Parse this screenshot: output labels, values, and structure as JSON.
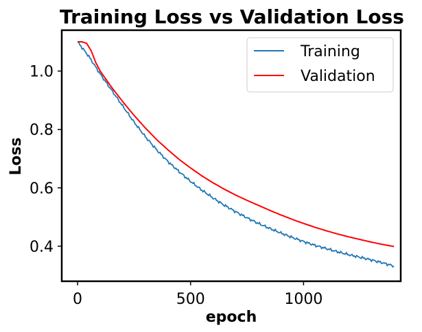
{
  "chart_data": {
    "type": "line",
    "title": "Training Loss vs Validation Loss",
    "xlabel": "epoch",
    "ylabel": "Loss",
    "xlim": [
      -70,
      1430
    ],
    "ylim": [
      0.28,
      1.14
    ],
    "xticks": [
      0,
      500,
      1000
    ],
    "yticks": [
      0.4,
      0.6,
      0.8,
      1.0
    ],
    "xtick_labels": [
      "0",
      "500",
      "1000"
    ],
    "ytick_labels": [
      "0.4",
      "0.6",
      "0.8",
      "1.0"
    ],
    "grid": false,
    "legend_position": "top-right",
    "series": [
      {
        "name": "Training",
        "color": "#1f77b4",
        "x": [
          0,
          50,
          100,
          150,
          200,
          250,
          300,
          350,
          400,
          450,
          500,
          550,
          600,
          650,
          700,
          750,
          800,
          850,
          900,
          950,
          1000,
          1050,
          1100,
          1150,
          1200,
          1250,
          1300,
          1350,
          1400
        ],
        "values": [
          1.1,
          1.05,
          0.99,
          0.935,
          0.88,
          0.825,
          0.775,
          0.73,
          0.69,
          0.655,
          0.622,
          0.592,
          0.565,
          0.54,
          0.518,
          0.497,
          0.478,
          0.461,
          0.445,
          0.43,
          0.416,
          0.403,
          0.392,
          0.381,
          0.371,
          0.362,
          0.353,
          0.343,
          0.332
        ]
      },
      {
        "name": "Validation",
        "color": "#ff0000",
        "x": [
          0,
          20,
          40,
          60,
          80,
          100,
          150,
          200,
          250,
          300,
          350,
          400,
          450,
          500,
          550,
          600,
          650,
          700,
          750,
          800,
          850,
          900,
          950,
          1000,
          1050,
          1100,
          1150,
          1200,
          1250,
          1300,
          1350,
          1400
        ],
        "values": [
          1.1,
          1.1,
          1.095,
          1.07,
          1.03,
          1.0,
          0.945,
          0.895,
          0.848,
          0.805,
          0.765,
          0.73,
          0.697,
          0.668,
          0.641,
          0.617,
          0.595,
          0.575,
          0.557,
          0.54,
          0.523,
          0.507,
          0.492,
          0.478,
          0.465,
          0.453,
          0.442,
          0.432,
          0.423,
          0.414,
          0.406,
          0.399
        ]
      }
    ]
  }
}
